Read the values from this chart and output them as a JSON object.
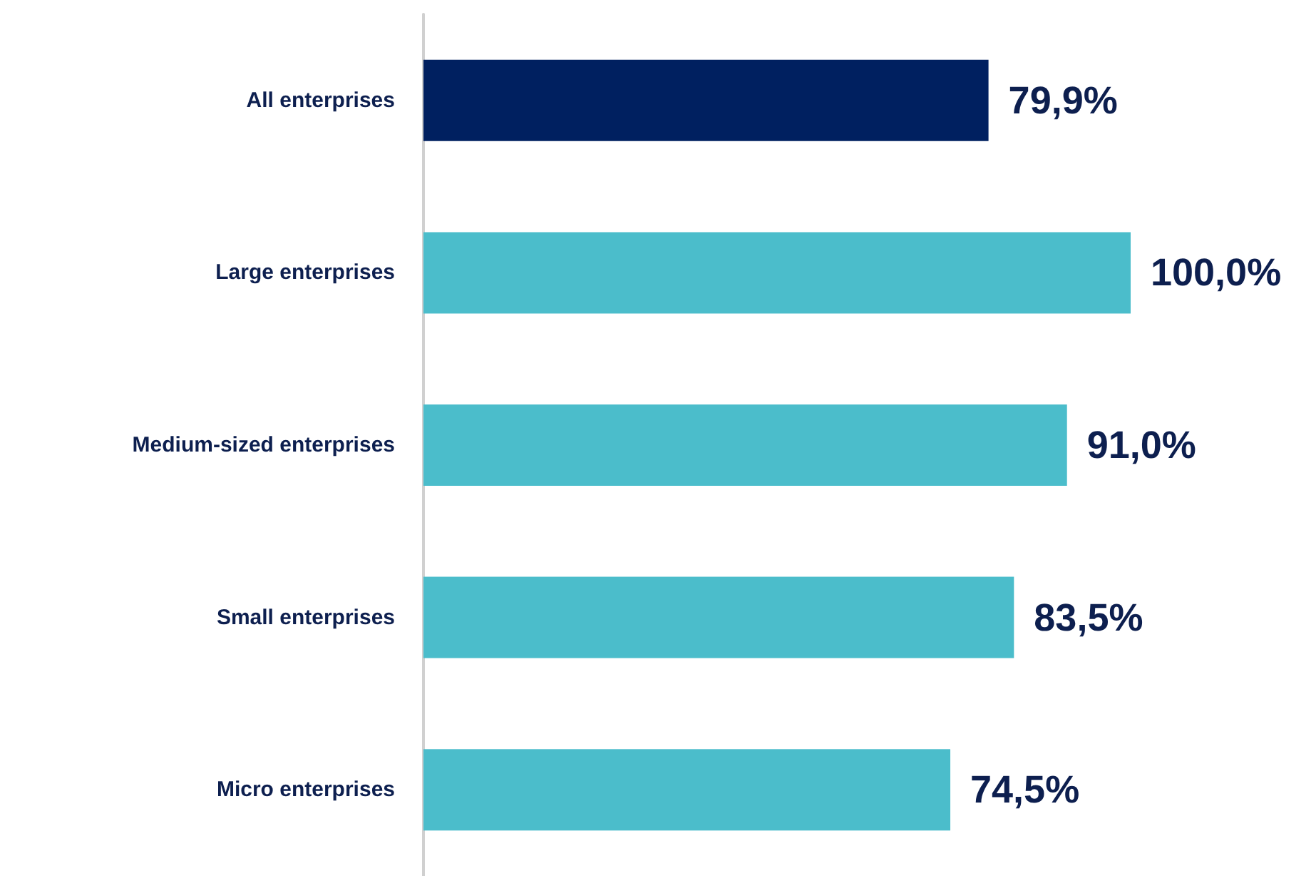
{
  "chart_data": {
    "type": "bar",
    "orientation": "horizontal",
    "categories": [
      "All enterprises",
      "Large enterprises",
      "Medium-sized enterprises",
      "Small enterprises",
      "Micro enterprises"
    ],
    "values": [
      79.9,
      100.0,
      91.0,
      83.5,
      74.5
    ],
    "value_labels": [
      "79,9%",
      "100,0%",
      "91,0%",
      "83,5%",
      "74,5%"
    ],
    "colors": [
      "#002060",
      "#4bbdcb",
      "#4bbdcb",
      "#4bbdcb",
      "#4bbdcb"
    ],
    "tick_labels": "y",
    "grid": false
  }
}
